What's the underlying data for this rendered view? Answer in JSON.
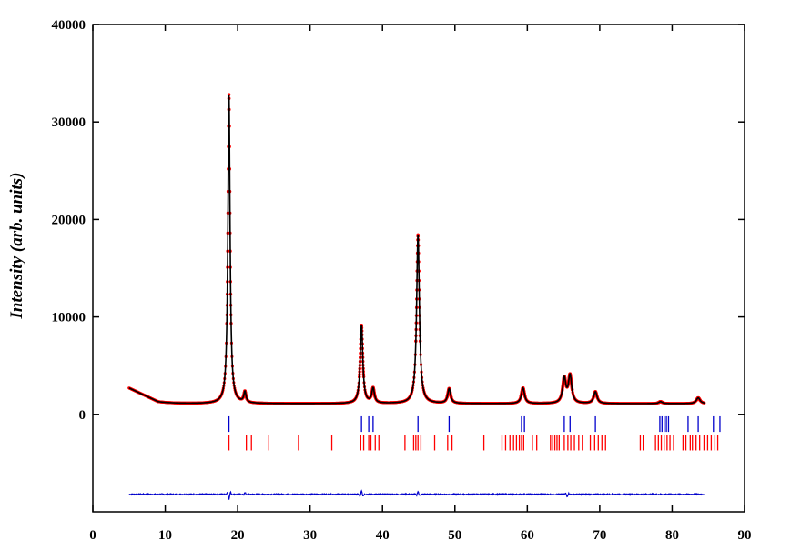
{
  "chart_data": {
    "type": "line",
    "title": "",
    "xlabel": "",
    "ylabel": "Intensity (arb. units)",
    "xlim": [
      0,
      90
    ],
    "ylim": [
      -10000,
      40000
    ],
    "x_ticks": [
      0,
      10,
      20,
      30,
      40,
      50,
      60,
      70,
      80,
      90
    ],
    "y_ticks": [
      0,
      10000,
      20000,
      30000,
      40000
    ],
    "grid": false,
    "legend": "none",
    "colors": {
      "observed": "#ff0000",
      "calculated": "#000000",
      "difference": "#0000cc",
      "phase1": "#0000cc",
      "phase2": "#ff0000"
    },
    "background": {
      "start": [
        5,
        2700
      ],
      "knee": [
        9,
        1300
      ],
      "tail": 1100,
      "end_x": 84.5
    },
    "peaks": [
      {
        "x": 18.8,
        "y": 32800
      },
      {
        "x": 21.0,
        "y": 2200
      },
      {
        "x": 37.1,
        "y": 9100
      },
      {
        "x": 38.7,
        "y": 2600
      },
      {
        "x": 44.9,
        "y": 18400
      },
      {
        "x": 49.2,
        "y": 2600
      },
      {
        "x": 59.4,
        "y": 2700
      },
      {
        "x": 65.1,
        "y": 3600
      },
      {
        "x": 65.9,
        "y": 3900
      },
      {
        "x": 69.4,
        "y": 2300
      },
      {
        "x": 78.4,
        "y": 1300
      },
      {
        "x": 83.6,
        "y": 1700
      }
    ],
    "difference_offset": -8200,
    "difference_features": [
      {
        "x": 18.8,
        "dy": -500
      },
      {
        "x": 21.0,
        "dy": 200
      },
      {
        "x": 37.1,
        "dy": 400
      },
      {
        "x": 44.9,
        "dy": 300
      },
      {
        "x": 65.5,
        "dy": -200
      }
    ],
    "reflections": [
      {
        "name": "",
        "color": "#0000cc",
        "row_y": [
          -200,
          -1800
        ],
        "positions": [
          18.8,
          37.1,
          38.1,
          38.7,
          44.9,
          49.2,
          59.2,
          59.6,
          65.1,
          65.9,
          69.4,
          78.3,
          78.6,
          78.9,
          79.2,
          79.5,
          82.2,
          83.6,
          85.7,
          86.6
        ]
      },
      {
        "name": "",
        "color": "#ff0000",
        "row_y": [
          -2100,
          -3700
        ],
        "positions": [
          18.8,
          21.2,
          21.9,
          24.3,
          28.4,
          33.0,
          37.0,
          37.4,
          38.1,
          38.4,
          39.0,
          39.5,
          43.1,
          44.3,
          44.6,
          44.9,
          45.3,
          47.2,
          49.0,
          49.6,
          54.0,
          56.5,
          57.0,
          57.6,
          58.1,
          58.5,
          58.9,
          59.2,
          59.5,
          60.7,
          61.3,
          63.2,
          63.5,
          63.8,
          64.1,
          64.4,
          65.1,
          65.6,
          66.0,
          66.5,
          67.1,
          67.6,
          68.7,
          69.3,
          69.8,
          70.3,
          70.8,
          75.6,
          76.0,
          77.7,
          78.1,
          78.5,
          78.9,
          79.3,
          79.7,
          80.2,
          81.5,
          81.9,
          82.5,
          82.8,
          83.3,
          83.8,
          84.4,
          84.9,
          85.4,
          85.9,
          86.3
        ]
      }
    ]
  }
}
